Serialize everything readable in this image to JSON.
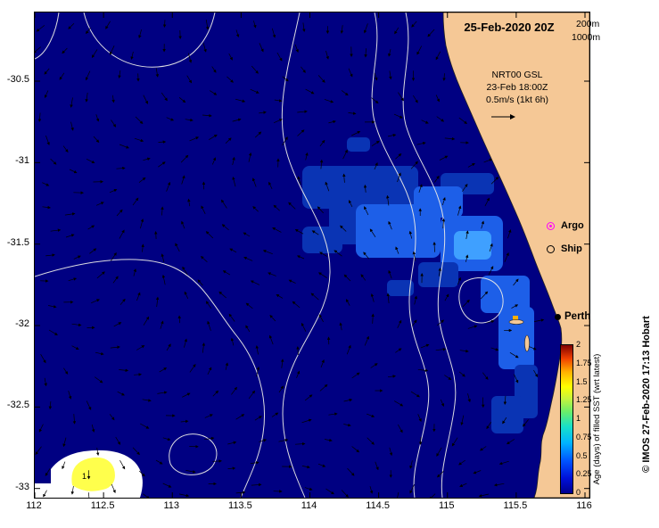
{
  "figure": {
    "title": "25-Feb-2020 20Z",
    "depth_labels": [
      "200m",
      "1000m"
    ],
    "annotation": {
      "product": "NRT00 GSL",
      "datetime": "23-Feb 18:00Z",
      "scale": "0.5m/s (1kt 6h)"
    },
    "legend": {
      "argo": "Argo",
      "ship": "Ship"
    },
    "city": "Perth",
    "contour_inline_label": "1",
    "copyright": "© IMOS 27-Feb-2020 17:13 Hobart"
  },
  "axes": {
    "x_ticks": [
      "112",
      "112.5",
      "113",
      "113.5",
      "114",
      "114.5",
      "115",
      "115.5",
      "116"
    ],
    "y_ticks": [
      "-30.5",
      "-31",
      "-31.5",
      "-32",
      "-32.5",
      "-33"
    ]
  },
  "colorbar": {
    "label": "Age (days) of filled SST (wrt latest)",
    "ticks": [
      "2",
      "1.75",
      "1.5",
      "1.25",
      "1",
      "0.75",
      "0.5",
      "0.25",
      "0"
    ],
    "range_min": 0,
    "range_max": 2
  },
  "colors": {
    "ocean_age0": "#000082",
    "age_quarter_day": "#1d5fe8",
    "age_half_day": "#3fa0ff",
    "age_one_day": "#ffff4c",
    "age_missing_white": "#ffffff",
    "land": "#f5c896",
    "bathymetry_contour": "#e8e8e6",
    "argo_marker": "#ff00ff",
    "ship_marker": "#000000",
    "current_vectors": "#000000"
  },
  "chart_data": {
    "type": "map",
    "title": "25-Feb-2020 20Z",
    "region": "Western Australia coast near Perth",
    "lon_range": [
      112,
      116.05
    ],
    "lat_range": [
      -33.05,
      -30.1
    ],
    "layers": [
      "Age (days) of filled SST (wrt latest), 0 to 2 day colour scale, mostly 0 (dark blue) with 0.25-0.5 day patches offshore and ~1 day (yellow/white) patch near 112.5E 33S",
      "Surface current vectors, scale 0.5 m/s = 1kt 6h",
      "Bathymetry contours at 200m and 1000m",
      "Argo (magenta) and Ship (black circle) observation legend",
      "Perth city marker"
    ],
    "legend_position": "right of map on land",
    "colorbar_position": "lower right, vertical"
  }
}
